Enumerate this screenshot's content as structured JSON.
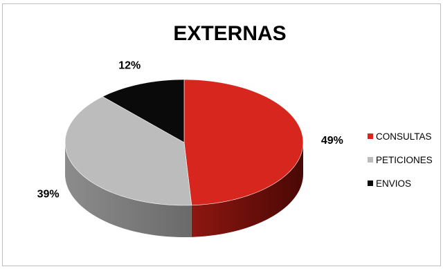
{
  "chart_data": {
    "type": "pie",
    "title": "EXTERNAS",
    "three_d": true,
    "legend_position": "right",
    "slices": [
      {
        "label": "CONSULTAS",
        "value": 49,
        "display": "49%",
        "color": "#d7261e"
      },
      {
        "label": "PETICIONES",
        "value": 39,
        "display": "39%",
        "color": "#bcbcbc"
      },
      {
        "label": "ENVIOS",
        "value": 12,
        "display": "12%",
        "color": "#0a0a0a"
      }
    ]
  }
}
